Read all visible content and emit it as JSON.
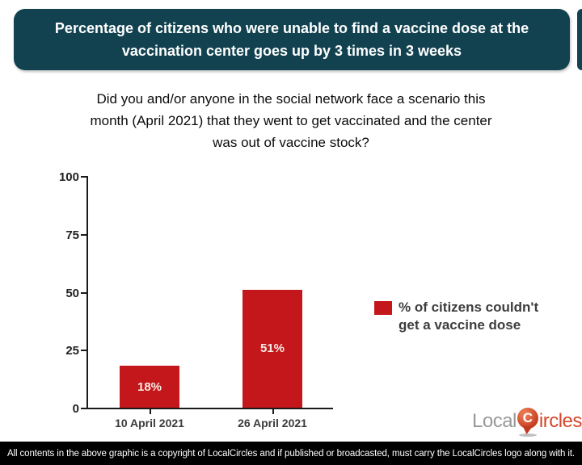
{
  "title": {
    "line1": "Percentage of citizens who were unable to find a vaccine dose at the",
    "line2": "vaccination center goes up by 3 times in 3 weeks"
  },
  "subtitle": {
    "line1": "Did you and/or anyone in the social network face a scenario this",
    "line2": "month (April 2021) that they went to get vaccinated and the center",
    "line3": "was out of vaccine stock?"
  },
  "chart_data": {
    "type": "bar",
    "categories": [
      "10 April 2021",
      "26 April 2021"
    ],
    "values": [
      18,
      51
    ],
    "bar_labels": [
      "18%",
      "51%"
    ],
    "title": "",
    "xlabel": "",
    "ylabel": "",
    "ylim": [
      0,
      100
    ],
    "yticks": [
      0,
      25,
      50,
      75,
      100
    ],
    "grid": false,
    "bar_color": "#C4171C",
    "legend": {
      "position": "right",
      "label": "% of citizens couldn't get a vaccine dose",
      "swatch_color": "#C4171C"
    }
  },
  "logo": {
    "part1": "Local",
    "pin_letter": "C",
    "part2": "ircles"
  },
  "footer": {
    "text": "All contents in the above graphic is a copyright of LocalCircles and if published or broadcasted, must carry the LocalCircles logo along with it."
  },
  "colors": {
    "banner-bg": "#124250",
    "banner-text": "#FFFFFF",
    "bar-red": "#C4171C",
    "axis": "#1A1A1A",
    "logo-gray": "#999999",
    "logo-red": "#D2492A",
    "footer-bg": "#000000"
  }
}
